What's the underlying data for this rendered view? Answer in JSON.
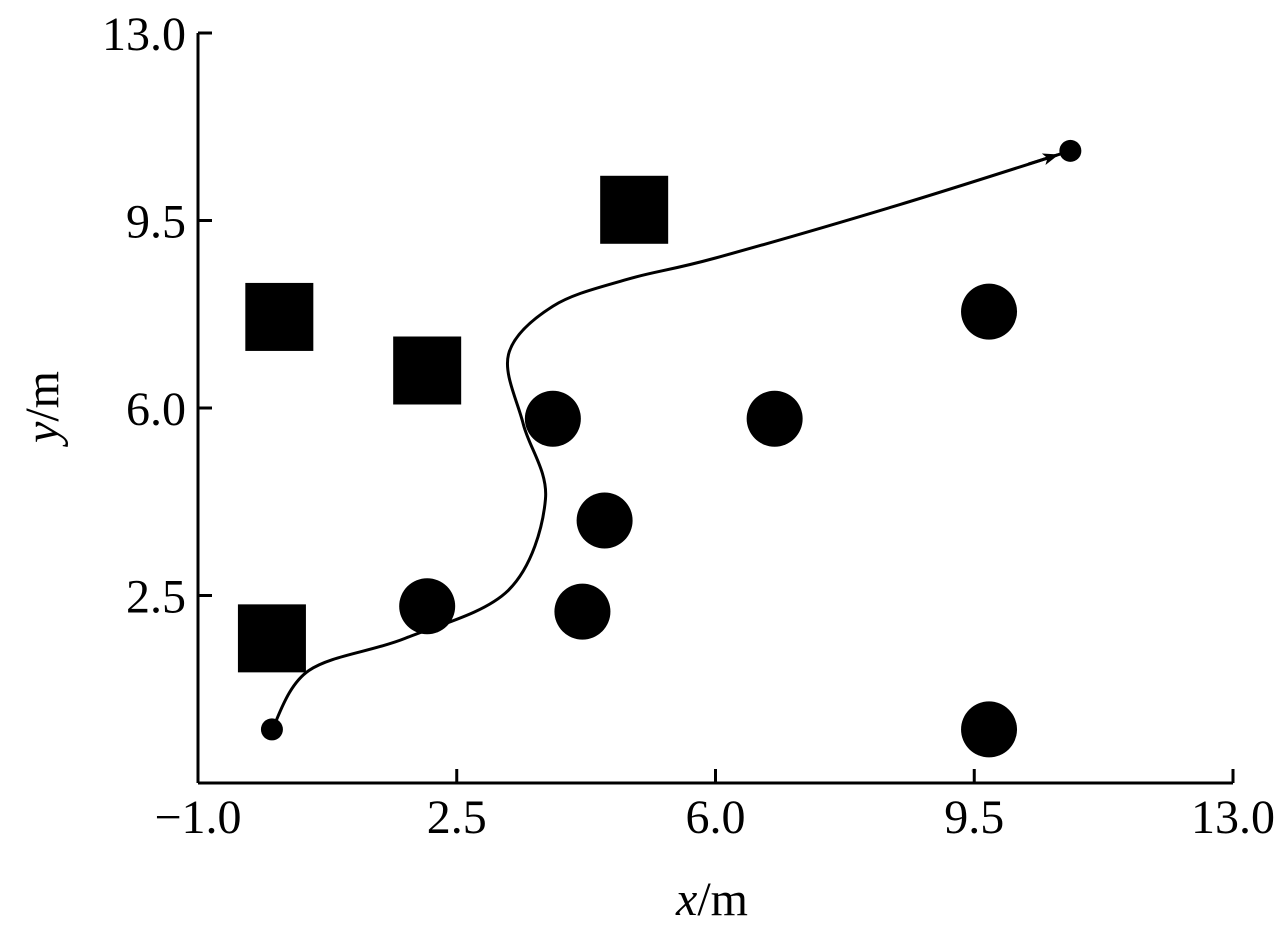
{
  "chart_data": {
    "type": "scatter",
    "xlabel_var": "x",
    "xlabel_unit": "/m",
    "ylabel_var": "y",
    "ylabel_unit": "/m",
    "xlim": [
      -1.0,
      13.0
    ],
    "ylim": [
      -1.0,
      13.0
    ],
    "xticks": [
      -1.0,
      2.5,
      6.0,
      9.5,
      13.0
    ],
    "yticks": [
      2.5,
      6.0,
      9.5,
      13.0
    ],
    "xtick_labels": [
      "−1.0",
      "2.5",
      "6.0",
      "9.5",
      "13.0"
    ],
    "ytick_labels": [
      "2.5",
      "6.0",
      "9.5",
      "13.0"
    ],
    "grid": false,
    "square_obstacles": [
      {
        "x": 0.0,
        "y": 1.7
      },
      {
        "x": 0.1,
        "y": 7.7
      },
      {
        "x": 2.1,
        "y": 6.7
      },
      {
        "x": 4.9,
        "y": 9.7
      }
    ],
    "circle_obstacles": [
      {
        "x": 2.1,
        "y": 2.3
      },
      {
        "x": 3.8,
        "y": 5.8
      },
      {
        "x": 4.5,
        "y": 3.9
      },
      {
        "x": 4.2,
        "y": 2.2
      },
      {
        "x": 6.8,
        "y": 5.8
      },
      {
        "x": 9.7,
        "y": 7.8
      },
      {
        "x": 9.7,
        "y": 0.0
      }
    ],
    "path": {
      "start": {
        "x": 0.0,
        "y": 0.0
      },
      "end": {
        "x": 10.8,
        "y": 10.8
      },
      "points": [
        {
          "x": 0.0,
          "y": 0.0
        },
        {
          "x": 0.5,
          "y": 1.1
        },
        {
          "x": 1.8,
          "y": 1.7
        },
        {
          "x": 3.2,
          "y": 2.6
        },
        {
          "x": 3.7,
          "y": 4.3
        },
        {
          "x": 3.4,
          "y": 5.7
        },
        {
          "x": 3.2,
          "y": 7.0
        },
        {
          "x": 3.8,
          "y": 7.9
        },
        {
          "x": 4.8,
          "y": 8.4
        },
        {
          "x": 6.0,
          "y": 8.8
        },
        {
          "x": 8.5,
          "y": 9.8
        },
        {
          "x": 10.8,
          "y": 10.8
        }
      ]
    }
  },
  "colors": {
    "marker": "#000000",
    "axis": "#000000",
    "path": "#000000",
    "background": "#ffffff"
  }
}
